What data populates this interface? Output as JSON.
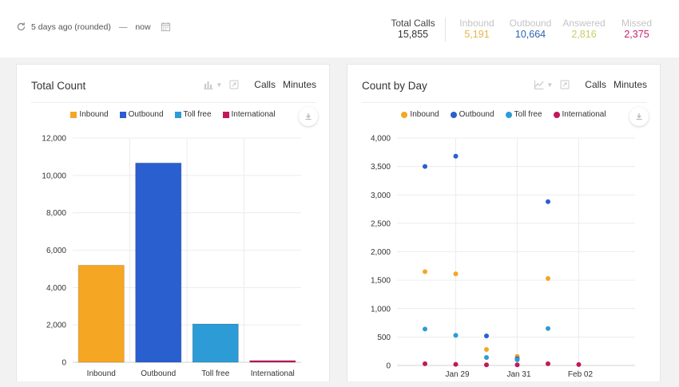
{
  "header": {
    "date_range_label": "5 days ago (rounded)",
    "dash": "—",
    "end_label": "now",
    "stats": [
      {
        "label": "Total Calls",
        "value": "15,855",
        "color": "#333333"
      },
      {
        "label": "Inbound",
        "value": "5,191",
        "color": "#e5b64a"
      },
      {
        "label": "Outbound",
        "value": "10,664",
        "color": "#2f62b5"
      },
      {
        "label": "Answered",
        "value": "2,816",
        "color": "#c9cd6a"
      },
      {
        "label": "Missed",
        "value": "2,375",
        "color": "#c4216f"
      }
    ]
  },
  "colors": {
    "inbound": "#f5a623",
    "outbound": "#2a5fcf",
    "tollfree": "#2d9bd6",
    "international": "#c2185b"
  },
  "cards": {
    "left": {
      "title": "Total Count",
      "calls_label": "Calls",
      "minutes_label": "Minutes"
    },
    "right": {
      "title": "Count by Day",
      "calls_label": "Calls",
      "minutes_label": "Minutes"
    }
  },
  "legend": [
    "Inbound",
    "Outbound",
    "Toll free",
    "International"
  ],
  "chart_data": [
    {
      "type": "bar",
      "title": "Total Count",
      "categories": [
        "Inbound",
        "Outbound",
        "Toll free",
        "International"
      ],
      "values": [
        5191,
        10664,
        2050,
        90
      ],
      "ylim": [
        0,
        12000
      ],
      "yticks": [
        0,
        2000,
        4000,
        6000,
        8000,
        10000,
        12000
      ],
      "ytick_labels": [
        "0",
        "2,000",
        "4,000",
        "6,000",
        "8,000",
        "10,000",
        "12,000"
      ],
      "grid": true
    },
    {
      "type": "scatter",
      "title": "Count by Day",
      "x_labels": [
        "Jan 29",
        "Jan 31",
        "Feb 02"
      ],
      "x": [
        "2024-01-28",
        "2024-01-29",
        "2024-01-30",
        "2024-01-31",
        "2024-02-01",
        "2024-02-02"
      ],
      "ylim": [
        0,
        4000
      ],
      "yticks": [
        0,
        500,
        1000,
        1500,
        2000,
        2500,
        3000,
        3500,
        4000
      ],
      "ytick_labels": [
        "0",
        "500",
        "1,000",
        "1,500",
        "2,000",
        "2,500",
        "3,000",
        "3,500",
        "4,000"
      ],
      "grid": true,
      "series": [
        {
          "name": "Inbound",
          "values": [
            1650,
            1610,
            280,
            160,
            1530,
            null
          ]
        },
        {
          "name": "Outbound",
          "values": [
            3500,
            3680,
            520,
            120,
            2880,
            null
          ]
        },
        {
          "name": "Toll free",
          "values": [
            640,
            530,
            140,
            100,
            650,
            null
          ]
        },
        {
          "name": "International",
          "values": [
            30,
            20,
            10,
            10,
            30,
            15
          ]
        }
      ]
    }
  ]
}
